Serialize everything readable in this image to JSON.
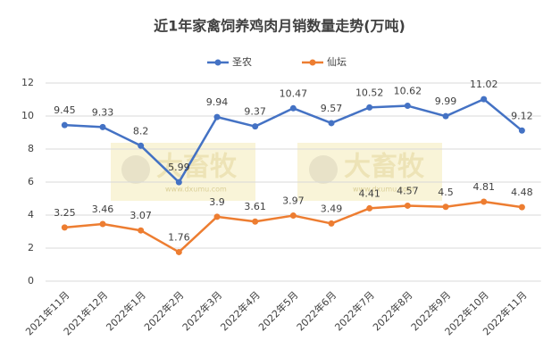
{
  "chart_data": {
    "type": "line",
    "title": "近1年家禽饲养鸡肉月销数量走势(万吨)",
    "categories": [
      "2021年11月",
      "2021年12月",
      "2022年1月",
      "2022年2月",
      "2022年3月",
      "2022年4月",
      "2022年5月",
      "2022年6月",
      "2022年7月",
      "2022年8月",
      "2022年9月",
      "2022年10月",
      "2022年11月"
    ],
    "series": [
      {
        "name": "圣农",
        "color": "#4472c4",
        "values": [
          9.45,
          9.33,
          8.2,
          5.99,
          9.94,
          9.37,
          10.47,
          9.57,
          10.52,
          10.62,
          9.99,
          11.02,
          9.12
        ]
      },
      {
        "name": "仙坛",
        "color": "#ed7d31",
        "values": [
          3.25,
          3.46,
          3.07,
          1.76,
          3.9,
          3.61,
          3.97,
          3.49,
          4.41,
          4.57,
          4.5,
          4.81,
          4.48
        ]
      }
    ],
    "ylim": [
      0,
      12
    ],
    "yticks": [
      0,
      2,
      4,
      6,
      8,
      10,
      12
    ],
    "grid": true,
    "legend": "top",
    "watermark": {
      "text": "大畜牧",
      "url": "www.dxumu.com"
    }
  }
}
